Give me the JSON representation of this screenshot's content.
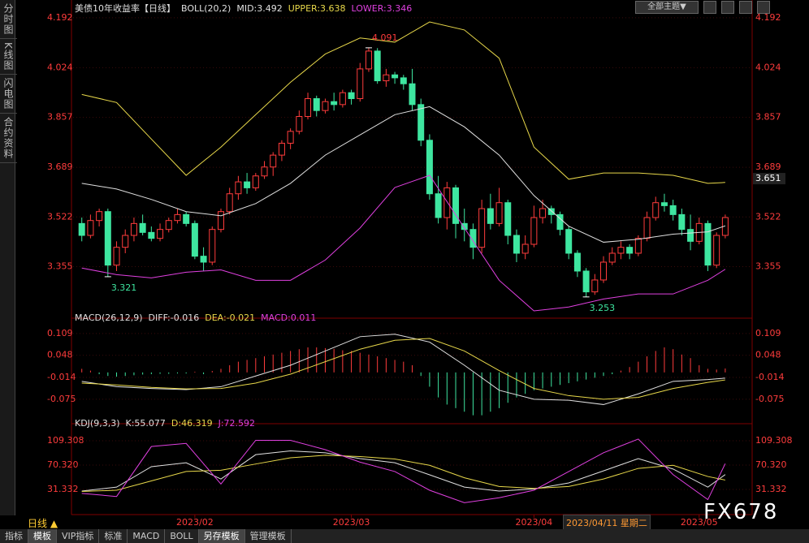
{
  "sidebar": [
    "分时图",
    "K线图",
    "闪电图",
    "合约资料"
  ],
  "toolbar": {
    "theme": "全部主题▼"
  },
  "chart_data": [
    {
      "type": "candlestick",
      "title": "美债10年收益率【日线】",
      "legend": [
        {
          "text": "BOLL(20,2)",
          "color": "#e0e0e0"
        },
        {
          "text": "MID:3.492",
          "color": "#e0e0e0"
        },
        {
          "text": "UPPER:3.638",
          "color": "#e8d84a"
        },
        {
          "text": "LOWER:3.346",
          "color": "#e040e0"
        }
      ],
      "up_color": "#ff3c3c",
      "down_color": "#3ee6a0",
      "grid": true,
      "xlim": [
        -1,
        77
      ],
      "ylim": [
        3.187,
        4.219
      ],
      "yticks": [
        4.192,
        4.024,
        3.857,
        3.689,
        3.522,
        3.355
      ],
      "candles": [
        [
          3.5,
          3.52,
          3.44,
          3.46
        ],
        [
          3.46,
          3.53,
          3.45,
          3.51
        ],
        [
          3.51,
          3.55,
          3.49,
          3.54
        ],
        [
          3.54,
          3.55,
          3.321,
          3.36
        ],
        [
          3.36,
          3.44,
          3.34,
          3.42
        ],
        [
          3.42,
          3.48,
          3.4,
          3.46
        ],
        [
          3.46,
          3.52,
          3.44,
          3.5
        ],
        [
          3.5,
          3.53,
          3.46,
          3.47
        ],
        [
          3.47,
          3.49,
          3.44,
          3.45
        ],
        [
          3.45,
          3.5,
          3.44,
          3.48
        ],
        [
          3.48,
          3.52,
          3.47,
          3.51
        ],
        [
          3.51,
          3.55,
          3.5,
          3.53
        ],
        [
          3.53,
          3.54,
          3.49,
          3.5
        ],
        [
          3.5,
          3.51,
          3.38,
          3.39
        ],
        [
          3.39,
          3.42,
          3.34,
          3.37
        ],
        [
          3.37,
          3.49,
          3.36,
          3.48
        ],
        [
          3.48,
          3.55,
          3.47,
          3.54
        ],
        [
          3.54,
          3.62,
          3.53,
          3.6
        ],
        [
          3.6,
          3.66,
          3.58,
          3.64
        ],
        [
          3.64,
          3.67,
          3.6,
          3.62
        ],
        [
          3.62,
          3.67,
          3.61,
          3.66
        ],
        [
          3.66,
          3.71,
          3.65,
          3.69
        ],
        [
          3.69,
          3.74,
          3.66,
          3.73
        ],
        [
          3.73,
          3.78,
          3.71,
          3.77
        ],
        [
          3.77,
          3.82,
          3.75,
          3.81
        ],
        [
          3.81,
          3.88,
          3.8,
          3.86
        ],
        [
          3.86,
          3.94,
          3.85,
          3.92
        ],
        [
          3.92,
          3.93,
          3.86,
          3.88
        ],
        [
          3.88,
          3.92,
          3.87,
          3.91
        ],
        [
          3.91,
          3.94,
          3.88,
          3.9
        ],
        [
          3.9,
          3.95,
          3.89,
          3.94
        ],
        [
          3.94,
          3.95,
          3.9,
          3.92
        ],
        [
          3.92,
          4.04,
          3.91,
          4.02
        ],
        [
          4.02,
          4.091,
          4.01,
          4.08
        ],
        [
          4.08,
          4.09,
          3.97,
          3.98
        ],
        [
          3.98,
          4.02,
          3.96,
          4.0
        ],
        [
          4.0,
          4.01,
          3.97,
          3.99
        ],
        [
          3.99,
          4.0,
          3.95,
          3.97
        ],
        [
          3.97,
          4.02,
          3.88,
          3.9
        ],
        [
          3.9,
          3.92,
          3.76,
          3.78
        ],
        [
          3.78,
          3.8,
          3.58,
          3.6
        ],
        [
          3.6,
          3.66,
          3.5,
          3.52
        ],
        [
          3.52,
          3.64,
          3.48,
          3.62
        ],
        [
          3.62,
          3.63,
          3.45,
          3.5
        ],
        [
          3.5,
          3.55,
          3.44,
          3.48
        ],
        [
          3.48,
          3.5,
          3.38,
          3.42
        ],
        [
          3.42,
          3.58,
          3.4,
          3.55
        ],
        [
          3.55,
          3.6,
          3.48,
          3.5
        ],
        [
          3.5,
          3.62,
          3.49,
          3.57
        ],
        [
          3.57,
          3.58,
          3.43,
          3.46
        ],
        [
          3.46,
          3.48,
          3.37,
          3.4
        ],
        [
          3.4,
          3.46,
          3.38,
          3.43
        ],
        [
          3.43,
          3.56,
          3.42,
          3.52
        ],
        [
          3.52,
          3.58,
          3.5,
          3.55
        ],
        [
          3.55,
          3.56,
          3.5,
          3.53
        ],
        [
          3.53,
          3.54,
          3.46,
          3.48
        ],
        [
          3.48,
          3.49,
          3.38,
          3.4
        ],
        [
          3.4,
          3.41,
          3.32,
          3.34
        ],
        [
          3.34,
          3.35,
          3.253,
          3.27
        ],
        [
          3.27,
          3.33,
          3.26,
          3.31
        ],
        [
          3.31,
          3.39,
          3.3,
          3.37
        ],
        [
          3.37,
          3.42,
          3.36,
          3.4
        ],
        [
          3.4,
          3.44,
          3.38,
          3.42
        ],
        [
          3.42,
          3.43,
          3.38,
          3.4
        ],
        [
          3.4,
          3.46,
          3.39,
          3.45
        ],
        [
          3.45,
          3.54,
          3.44,
          3.52
        ],
        [
          3.52,
          3.59,
          3.51,
          3.57
        ],
        [
          3.57,
          3.6,
          3.54,
          3.56
        ],
        [
          3.56,
          3.58,
          3.51,
          3.53
        ],
        [
          3.53,
          3.55,
          3.46,
          3.48
        ],
        [
          3.48,
          3.53,
          3.41,
          3.44
        ],
        [
          3.44,
          3.52,
          3.43,
          3.5
        ],
        [
          3.5,
          3.51,
          3.34,
          3.36
        ],
        [
          3.36,
          3.47,
          3.35,
          3.46
        ],
        [
          3.46,
          3.53,
          3.45,
          3.52
        ]
      ],
      "x": [
        0,
        4,
        8,
        12,
        16,
        20,
        24,
        28,
        32,
        36,
        40,
        44,
        48,
        52,
        56,
        60,
        64,
        68,
        72,
        74
      ],
      "series": [
        {
          "name": "UPPER",
          "color": "#e8d84a",
          "values": [
            3.934,
            3.907,
            3.784,
            3.662,
            3.757,
            3.866,
            3.975,
            4.07,
            4.124,
            4.11,
            4.178,
            4.151,
            4.056,
            3.757,
            3.649,
            3.67,
            3.67,
            3.662,
            3.635,
            3.638
          ]
        },
        {
          "name": "MID",
          "color": "#e0e0e0",
          "values": [
            3.635,
            3.616,
            3.581,
            3.54,
            3.526,
            3.567,
            3.635,
            3.73,
            3.798,
            3.866,
            3.893,
            3.825,
            3.73,
            3.594,
            3.491,
            3.437,
            3.447,
            3.464,
            3.472,
            3.492
          ]
        },
        {
          "name": "LOWER",
          "color": "#e040e0",
          "values": [
            3.35,
            3.328,
            3.317,
            3.336,
            3.344,
            3.309,
            3.309,
            3.377,
            3.485,
            3.621,
            3.662,
            3.485,
            3.309,
            3.206,
            3.219,
            3.246,
            3.263,
            3.263,
            3.309,
            3.346
          ]
        }
      ],
      "annotations": [
        {
          "index": 33,
          "value": 4.091,
          "color": "#ff3c3c"
        },
        {
          "index": 3,
          "value": 3.321,
          "color": "#3ee6a0"
        },
        {
          "index": 58,
          "value": 3.253,
          "color": "#3ee6a0"
        }
      ],
      "price_marker": 3.651
    },
    {
      "type": "macd",
      "legend": [
        {
          "text": "MACD(26,12,9)",
          "color": "#e0e0e0"
        },
        {
          "text": "DIFF:-0.016",
          "color": "#e0e0e0"
        },
        {
          "text": "DEA:-0.021",
          "color": "#e8d84a"
        },
        {
          "text": "MACD:0.011",
          "color": "#e040e0"
        }
      ],
      "up_color": "#ff3c3c",
      "down_color": "#3ee6a0",
      "grid": true,
      "xlim": [
        -1,
        77
      ],
      "ylim": [
        -0.139,
        0.145
      ],
      "yticks": [
        0.109,
        0.048,
        -0.014,
        -0.075
      ],
      "histogram": [
        0.01,
        0.005,
        -0.005,
        -0.01,
        -0.012,
        -0.01,
        -0.008,
        -0.006,
        -0.005,
        -0.004,
        -0.004,
        -0.003,
        -0.003,
        0.002,
        -0.005,
        0.004,
        0.01,
        0.02,
        0.03,
        0.035,
        0.04,
        0.045,
        0.05,
        0.055,
        0.06,
        0.065,
        0.07,
        0.07,
        0.068,
        0.066,
        0.062,
        0.06,
        0.055,
        0.05,
        0.045,
        0.04,
        0.035,
        0.03,
        0.02,
        -0.01,
        -0.04,
        -0.07,
        -0.09,
        -0.1,
        -0.11,
        -0.12,
        -0.12,
        -0.11,
        -0.1,
        -0.085,
        -0.07,
        -0.06,
        -0.05,
        -0.045,
        -0.04,
        -0.035,
        -0.03,
        -0.025,
        -0.02,
        -0.015,
        -0.01,
        -0.005,
        0.005,
        0.015,
        0.03,
        0.045,
        0.06,
        0.07,
        0.065,
        0.05,
        0.04,
        0.02,
        0.01,
        0.008,
        0.011
      ],
      "x": [
        0,
        4,
        8,
        12,
        16,
        20,
        24,
        28,
        32,
        36,
        40,
        44,
        48,
        52,
        56,
        60,
        64,
        68,
        72,
        74
      ],
      "series": [
        {
          "name": "DIFF",
          "color": "#e0e0e0",
          "values": [
            -0.025,
            -0.04,
            -0.045,
            -0.048,
            -0.04,
            -0.01,
            0.02,
            0.06,
            0.1,
            0.107,
            0.085,
            0.02,
            -0.05,
            -0.075,
            -0.078,
            -0.09,
            -0.06,
            -0.025,
            -0.02,
            -0.016
          ]
        },
        {
          "name": "DEA",
          "color": "#e8d84a",
          "values": [
            -0.03,
            -0.035,
            -0.042,
            -0.046,
            -0.045,
            -0.03,
            -0.005,
            0.03,
            0.065,
            0.09,
            0.095,
            0.06,
            0.005,
            -0.045,
            -0.065,
            -0.075,
            -0.07,
            -0.045,
            -0.028,
            -0.021
          ]
        }
      ]
    },
    {
      "type": "line",
      "legend": [
        {
          "text": "KDJ(9,3,3)",
          "color": "#e0e0e0"
        },
        {
          "text": "K:55.077",
          "color": "#e0e0e0"
        },
        {
          "text": "D:46.319",
          "color": "#e8d84a"
        },
        {
          "text": "J:72.592",
          "color": "#e040e0"
        }
      ],
      "grid": true,
      "xlim": [
        -1,
        77
      ],
      "ylim": [
        -6.4,
        132.7
      ],
      "yticks": [
        109.308,
        {
          "value": 70.32,
          "label": "70.320"
        },
        31.332
      ],
      "xticks": [
        {
          "value": 13,
          "label": "2023/02"
        },
        {
          "value": 31,
          "label": "2023/03"
        },
        {
          "value": 52,
          "label": "2023/04"
        },
        {
          "value": 71,
          "label": "2023/05"
        }
      ],
      "x": [
        0,
        4,
        8,
        12,
        16,
        20,
        24,
        28,
        32,
        36,
        40,
        44,
        48,
        52,
        56,
        60,
        64,
        68,
        72,
        74
      ],
      "series": [
        {
          "name": "K",
          "color": "#e0e0e0",
          "values": [
            28.7,
            35,
            67.7,
            74,
            48,
            87,
            93,
            90,
            80.7,
            74,
            54.7,
            35,
            28.7,
            32,
            41.7,
            61,
            80.7,
            64,
            35,
            55.077
          ]
        },
        {
          "name": "D",
          "color": "#e8d84a",
          "values": [
            28,
            30,
            45,
            60,
            62,
            72,
            82,
            86,
            84,
            80,
            70,
            50,
            36,
            33,
            36,
            48,
            65,
            70,
            52,
            46.319
          ]
        },
        {
          "name": "J",
          "color": "#e040e0",
          "values": [
            25,
            20,
            100,
            105,
            40,
            110,
            110,
            95,
            75,
            60,
            30,
            10,
            18,
            30,
            60,
            90,
            112,
            55,
            15,
            72.592
          ]
        }
      ]
    }
  ],
  "footer": {
    "period": "日线 ▲",
    "cursor_date": "2023/04/11 星期二",
    "watermark": "FX678",
    "tabs": [
      "指标",
      "模板",
      "VIP指标",
      "标准",
      "MACD",
      "BOLL",
      "另存模板",
      "管理模板"
    ]
  }
}
